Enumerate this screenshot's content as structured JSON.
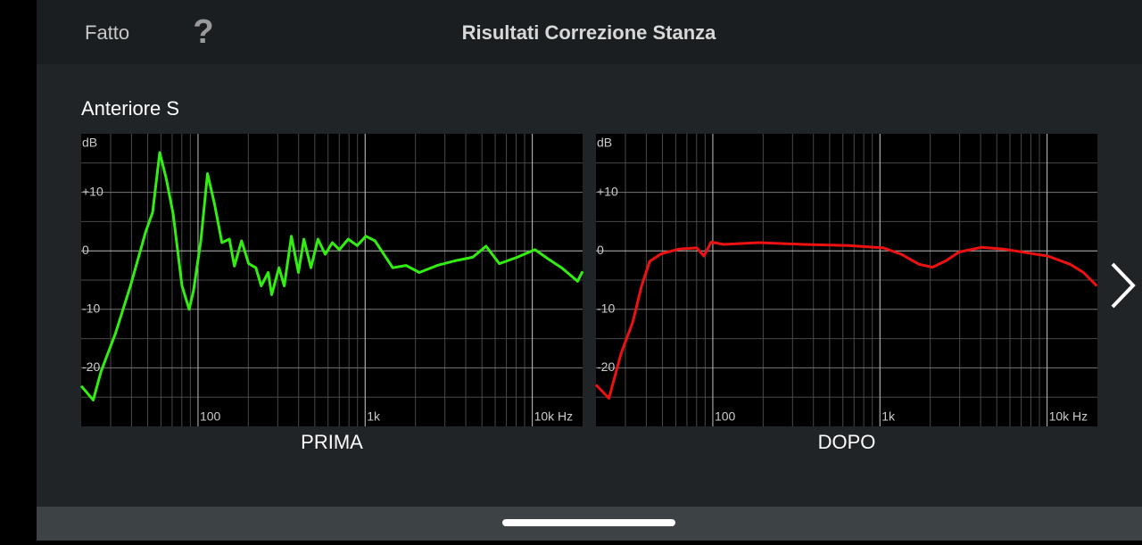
{
  "header": {
    "done": "Fatto",
    "help": "?",
    "title": "Risultati Correzione Stanza"
  },
  "section_title": "Anteriore S",
  "chart_data": [
    {
      "type": "line",
      "title": "PRIMA",
      "ylabel": "dB",
      "xscale": "log",
      "xlim": [
        20,
        20000
      ],
      "ylim": [
        -30,
        20
      ],
      "xticks": [
        100,
        {
          "value": 1000,
          "label": "1k"
        },
        {
          "value": 10000,
          "label": "10k Hz"
        }
      ],
      "yticks": [
        {
          "value": 10,
          "label": "+10"
        },
        0,
        -10,
        -20
      ],
      "grid": true,
      "series": [
        {
          "color": "#33ee11",
          "x": [
            20,
            23.6,
            26.3,
            32,
            39.4,
            48.6,
            53.5,
            59,
            64.4,
            71,
            80.2,
            88.5,
            94,
            104,
            114,
            126,
            139,
            154,
            165,
            182,
            201,
            222,
            239,
            263,
            276,
            305,
            328,
            362,
            399,
            430,
            474,
            522,
            577,
            636,
            701,
            792,
            896,
            1010,
            1145,
            1294,
            1462,
            1757,
            2109,
            2697,
            3445,
            4405,
            5290,
            6353,
            8120,
            10370,
            12470,
            14990,
            18680,
            20000
          ],
          "values": [
            -23.1,
            -25.5,
            -20.6,
            -14.2,
            -6,
            3.2,
            6.6,
            16.8,
            12.5,
            6.3,
            -6,
            -10,
            -6.8,
            1.7,
            13.2,
            7.8,
            1.4,
            2,
            -2.6,
            1.7,
            -2.2,
            -2.9,
            -6,
            -3.7,
            -7.5,
            -2.9,
            -6,
            2.5,
            -3.7,
            2,
            -2.9,
            2,
            -0.6,
            1.4,
            0.2,
            2,
            0.9,
            2.5,
            1.7,
            -0.6,
            -2.9,
            -2.5,
            -3.7,
            -2.5,
            -1.7,
            -1.1,
            0.8,
            -2.2,
            -1.1,
            0.2,
            -1.4,
            -2.9,
            -5.2,
            -3.5
          ]
        }
      ]
    },
    {
      "type": "line",
      "title": "DOPO",
      "ylabel": "dB",
      "xscale": "log",
      "xlim": [
        20,
        20000
      ],
      "ylim": [
        -30,
        20
      ],
      "xticks": [
        100,
        {
          "value": 1000,
          "label": "1k"
        },
        {
          "value": 10000,
          "label": "10k Hz"
        }
      ],
      "yticks": [
        {
          "value": 10,
          "label": "+10"
        },
        0,
        -10,
        -20
      ],
      "grid": true,
      "series": [
        {
          "color": "#ee1111",
          "x": [
            20,
            23.9,
            28.3,
            33.2,
            37.5,
            41.9,
            49.1,
            62.8,
            80.2,
            88.5,
            97.6,
            116,
            189,
            349,
            644,
            1050,
            1342,
            1715,
            2060,
            2478,
            2975,
            4040,
            5485,
            7450,
            10120,
            13750,
            16520,
            19860
          ],
          "values": [
            -22.9,
            -25.2,
            -17.5,
            -12.2,
            -6,
            -1.8,
            -0.5,
            0.3,
            0.5,
            -0.9,
            1.5,
            1.1,
            1.4,
            1.1,
            0.9,
            0.5,
            -0.6,
            -2.3,
            -2.8,
            -1.7,
            -0.2,
            0.6,
            0.3,
            -0.3,
            -0.9,
            -2.3,
            -3.7,
            -6
          ]
        }
      ]
    }
  ]
}
